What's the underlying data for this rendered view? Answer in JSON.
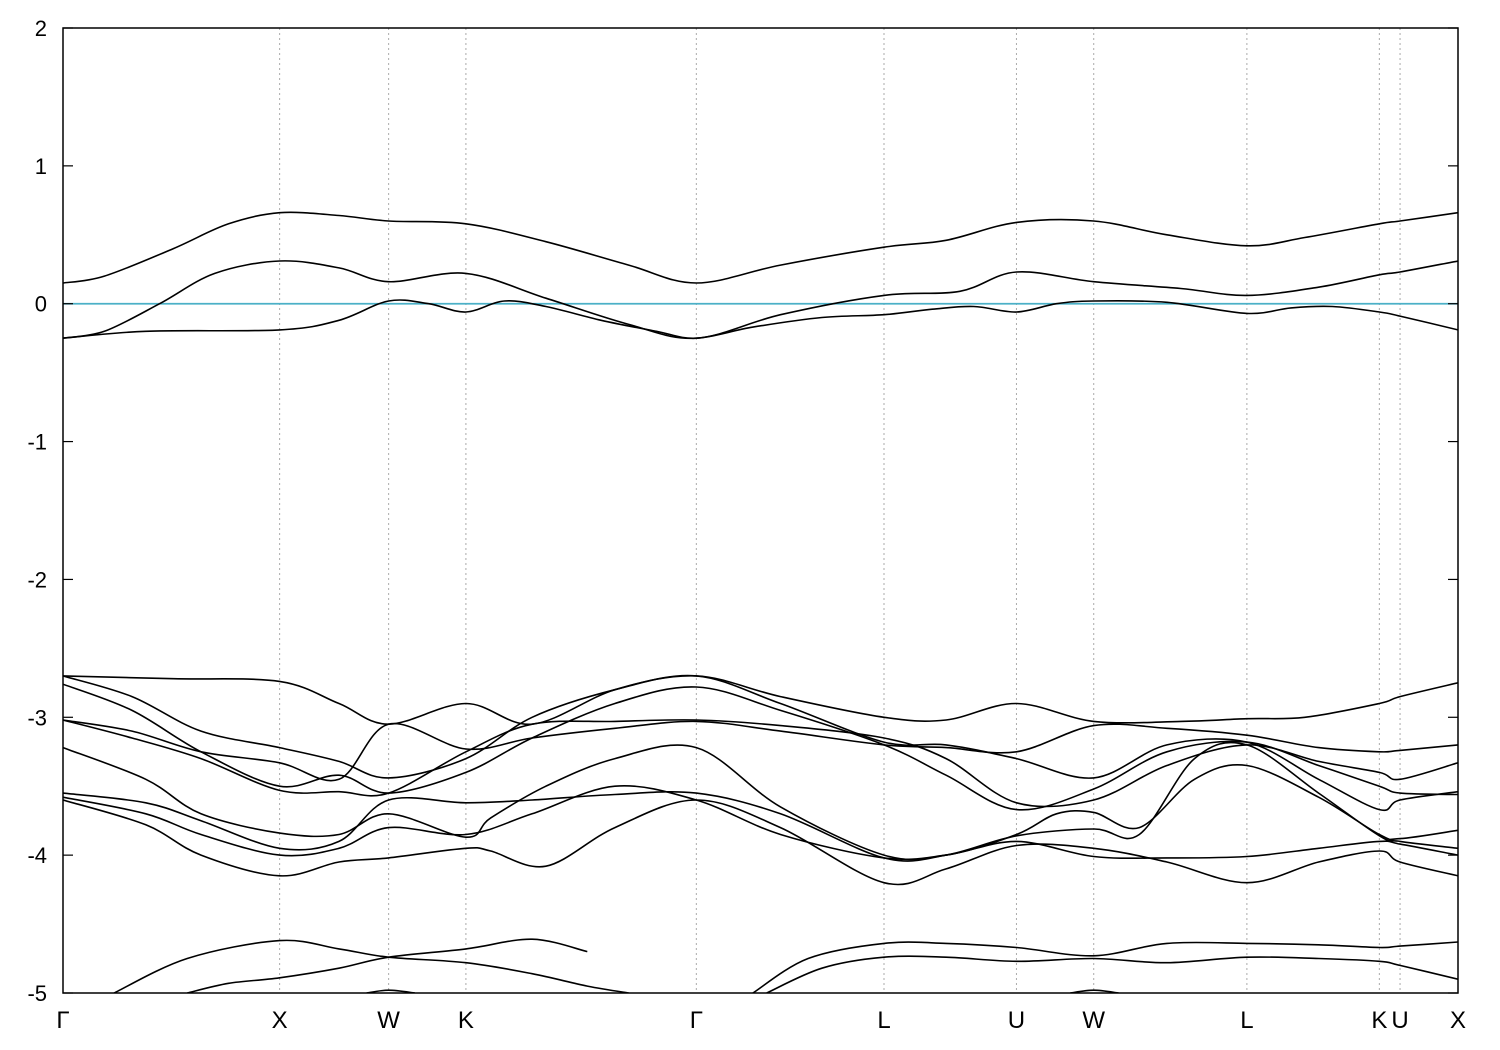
{
  "chart_data": {
    "type": "line",
    "title": "",
    "xlabel": "",
    "ylabel": "",
    "ylim": [
      -5,
      2
    ],
    "yticks": [
      -5,
      -4,
      -3,
      -2,
      -1,
      0,
      1,
      2
    ],
    "xlim": [
      0,
      10.11
    ],
    "grid": false,
    "fermi_level": {
      "value": 0,
      "color": "#4bb0c7"
    },
    "high_symmetry_points": [
      {
        "label": "Γ",
        "x": 0.0
      },
      {
        "label": "X",
        "x": 1.57
      },
      {
        "label": "W",
        "x": 2.36
      },
      {
        "label": "K",
        "x": 2.92
      },
      {
        "label": "Γ",
        "x": 4.59
      },
      {
        "label": "L",
        "x": 5.95
      },
      {
        "label": "U",
        "x": 6.91
      },
      {
        "label": "W",
        "x": 7.47
      },
      {
        "label": "L",
        "x": 8.58
      },
      {
        "label": "K",
        "x": 9.54
      },
      {
        "label": "U",
        "x": 9.69
      },
      {
        "label": "X",
        "x": 10.11
      }
    ],
    "series": [
      {
        "x": [
          0,
          0.3,
          0.8,
          1.2,
          1.57,
          2.0,
          2.36,
          2.92,
          3.5,
          4.1,
          4.59,
          5.2,
          5.95,
          6.4,
          6.91,
          7.47,
          8.0,
          8.58,
          9.0,
          9.54,
          9.69,
          10.11
        ],
        "values": [
          0.15,
          0.2,
          0.4,
          0.58,
          0.66,
          0.64,
          0.6,
          0.58,
          0.45,
          0.28,
          0.15,
          0.28,
          0.41,
          0.46,
          0.59,
          0.6,
          0.5,
          0.42,
          0.48,
          0.58,
          0.6,
          0.66
        ]
      },
      {
        "x": [
          0,
          0.3,
          0.7,
          1.1,
          1.57,
          2.0,
          2.36,
          2.92,
          3.5,
          4.1,
          4.59,
          5.2,
          5.95,
          6.5,
          6.91,
          7.47,
          8.1,
          8.58,
          9.1,
          9.54,
          9.69,
          10.11
        ],
        "values": [
          -0.25,
          -0.2,
          0.0,
          0.22,
          0.31,
          0.26,
          0.16,
          0.22,
          0.04,
          -0.15,
          -0.25,
          -0.08,
          0.06,
          0.09,
          0.23,
          0.16,
          0.11,
          0.06,
          0.12,
          0.21,
          0.23,
          0.31
        ]
      },
      {
        "x": [
          0,
          0.6,
          1.57,
          2.0,
          2.36,
          2.65,
          2.92,
          3.2,
          3.5,
          3.9,
          4.3,
          4.59,
          5.0,
          5.5,
          5.95,
          6.3,
          6.6,
          6.91,
          7.2,
          7.47,
          8.0,
          8.58,
          8.9,
          9.2,
          9.54,
          9.69,
          10.11
        ],
        "values": [
          -0.25,
          -0.2,
          -0.19,
          -0.12,
          0.02,
          0.0,
          -0.06,
          0.02,
          -0.02,
          -0.12,
          -0.2,
          -0.25,
          -0.17,
          -0.1,
          -0.08,
          -0.04,
          -0.02,
          -0.06,
          0.0,
          0.02,
          0.01,
          -0.07,
          -0.03,
          -0.02,
          -0.06,
          -0.09,
          -0.19
        ]
      },
      {
        "x": [
          0,
          0.8,
          1.57,
          2.0,
          2.36,
          2.92,
          3.4,
          4.0,
          4.59,
          5.2,
          5.95,
          6.4,
          6.91,
          7.47,
          8.1,
          8.58,
          9.0,
          9.54,
          9.69,
          10.11
        ],
        "values": [
          -2.7,
          -2.72,
          -2.74,
          -2.9,
          -3.05,
          -2.9,
          -3.05,
          -2.8,
          -2.7,
          -2.85,
          -3.0,
          -3.02,
          -2.9,
          -3.03,
          -3.03,
          -3.01,
          -3.0,
          -2.9,
          -2.85,
          -2.75
        ]
      },
      {
        "x": [
          0,
          0.5,
          1.0,
          1.57,
          2.0,
          2.36,
          2.92,
          3.4,
          4.0,
          4.59,
          5.2,
          5.95,
          6.4,
          6.91,
          7.47,
          8.0,
          8.58,
          9.1,
          9.54,
          9.69,
          10.11
        ],
        "values": [
          -2.7,
          -2.85,
          -3.1,
          -3.22,
          -3.32,
          -3.44,
          -3.3,
          -3.0,
          -2.8,
          -2.7,
          -2.9,
          -3.18,
          -3.2,
          -3.3,
          -3.44,
          -3.2,
          -3.18,
          -3.45,
          -3.67,
          -3.6,
          -3.54
        ]
      },
      {
        "x": [
          0,
          0.5,
          1.0,
          1.57,
          2.0,
          2.36,
          2.92,
          3.4,
          4.0,
          4.59,
          5.2,
          5.95,
          6.4,
          6.91,
          7.47,
          8.0,
          8.58,
          9.1,
          9.54,
          9.69,
          10.11
        ],
        "values": [
          -2.76,
          -2.95,
          -3.25,
          -3.5,
          -3.42,
          -3.55,
          -3.4,
          -3.15,
          -2.9,
          -2.78,
          -2.95,
          -3.2,
          -3.42,
          -3.67,
          -3.52,
          -3.25,
          -3.18,
          -3.35,
          -3.5,
          -3.55,
          -3.56
        ]
      },
      {
        "x": [
          0,
          0.5,
          1.0,
          1.57,
          2.0,
          2.36,
          2.92,
          3.4,
          4.0,
          4.59,
          5.2,
          5.95,
          6.4,
          6.91,
          7.47,
          8.0,
          8.58,
          9.1,
          9.54,
          9.69,
          10.11
        ],
        "values": [
          -3.02,
          -3.1,
          -3.25,
          -3.33,
          -3.45,
          -3.05,
          -3.23,
          -3.15,
          -3.08,
          -3.03,
          -3.1,
          -3.2,
          -3.22,
          -3.25,
          -3.06,
          -3.08,
          -3.13,
          -3.22,
          -3.25,
          -3.24,
          -3.2
        ]
      },
      {
        "x": [
          0,
          0.5,
          1.0,
          1.57,
          2.0,
          2.36,
          2.92,
          3.4,
          4.0,
          4.59,
          5.2,
          5.95,
          6.4,
          6.91,
          7.47,
          8.0,
          8.58,
          9.1,
          9.54,
          9.69,
          10.11
        ],
        "values": [
          -3.02,
          -3.15,
          -3.3,
          -3.53,
          -3.54,
          -3.55,
          -3.25,
          -3.05,
          -3.03,
          -3.02,
          -3.06,
          -3.15,
          -3.3,
          -3.62,
          -3.6,
          -3.35,
          -3.2,
          -3.32,
          -3.4,
          -3.45,
          -3.33
        ]
      },
      {
        "x": [
          0,
          0.6,
          1.0,
          1.57,
          2.0,
          2.36,
          2.92,
          3.1,
          3.5,
          4.0,
          4.59,
          5.2,
          5.95,
          6.4,
          6.91,
          7.2,
          7.47,
          7.8,
          8.2,
          8.58,
          9.1,
          9.54,
          9.69,
          10.11
        ],
        "values": [
          -3.22,
          -3.45,
          -3.7,
          -3.84,
          -3.85,
          -3.7,
          -3.87,
          -3.73,
          -3.5,
          -3.3,
          -3.22,
          -3.65,
          -4.0,
          -4.0,
          -3.85,
          -3.7,
          -3.69,
          -3.8,
          -3.45,
          -3.35,
          -3.58,
          -3.85,
          -3.88,
          -3.82
        ]
      },
      {
        "x": [
          0,
          0.6,
          1.0,
          1.57,
          2.0,
          2.36,
          2.92,
          3.4,
          4.0,
          4.59,
          5.2,
          5.95,
          6.4,
          6.91,
          7.47,
          7.8,
          8.2,
          8.58,
          9.1,
          9.54,
          9.69,
          10.11
        ],
        "values": [
          -3.55,
          -3.62,
          -3.75,
          -3.95,
          -3.9,
          -3.6,
          -3.62,
          -3.6,
          -3.56,
          -3.55,
          -3.7,
          -4.02,
          -4.0,
          -3.86,
          -3.81,
          -3.85,
          -3.3,
          -3.2,
          -3.55,
          -3.86,
          -3.9,
          -3.95
        ]
      },
      {
        "x": [
          0,
          0.6,
          1.0,
          1.57,
          2.0,
          2.36,
          2.92,
          3.4,
          4.0,
          4.59,
          5.2,
          5.95,
          6.4,
          6.91,
          7.47,
          8.0,
          8.58,
          9.1,
          9.54,
          9.69,
          10.11
        ],
        "values": [
          -3.58,
          -3.7,
          -3.85,
          -4.0,
          -3.95,
          -3.8,
          -3.85,
          -3.7,
          -3.5,
          -3.6,
          -3.85,
          -4.02,
          -4.0,
          -3.9,
          -4.01,
          -4.02,
          -4.01,
          -3.95,
          -3.9,
          -3.92,
          -4.0
        ]
      },
      {
        "x": [
          0,
          0.6,
          1.0,
          1.57,
          2.0,
          2.36,
          2.92,
          3.1,
          3.5,
          4.0,
          4.59,
          5.2,
          5.95,
          6.4,
          6.91,
          7.47,
          8.0,
          8.58,
          9.1,
          9.54,
          9.69,
          10.11
        ],
        "values": [
          -3.6,
          -3.78,
          -4.0,
          -4.15,
          -4.05,
          -4.02,
          -3.95,
          -3.97,
          -4.08,
          -3.8,
          -3.6,
          -3.8,
          -4.2,
          -4.1,
          -3.93,
          -3.95,
          -4.05,
          -4.2,
          -4.05,
          -3.97,
          -4.05,
          -4.15
        ]
      },
      {
        "x": [
          0.37,
          0.9,
          1.57,
          2.0,
          2.36,
          2.92,
          3.4,
          3.8,
          4.1
        ],
        "values": [
          -5.0,
          -4.75,
          -4.62,
          -4.68,
          -4.74,
          -4.78,
          -4.86,
          -4.95,
          -5.0
        ]
      },
      {
        "x": [
          0.9,
          1.2,
          1.57,
          2.0,
          2.36,
          2.92,
          3.4,
          3.8
        ],
        "values": [
          -5.0,
          -4.93,
          -4.89,
          -4.82,
          -4.74,
          -4.68,
          -4.61,
          -4.7
        ]
      },
      {
        "x": [
          5.0,
          5.4,
          5.95,
          6.4,
          6.91,
          7.47,
          8.0,
          8.58,
          9.1,
          9.54,
          9.69,
          10.11
        ],
        "values": [
          -5.0,
          -4.75,
          -4.64,
          -4.64,
          -4.67,
          -4.73,
          -4.64,
          -4.64,
          -4.65,
          -4.67,
          -4.66,
          -4.63
        ]
      },
      {
        "x": [
          5.1,
          5.5,
          5.95,
          6.4,
          6.91,
          7.47,
          8.0,
          8.58,
          9.1,
          9.54,
          9.69,
          10.11
        ],
        "values": [
          -5.0,
          -4.82,
          -4.74,
          -4.74,
          -4.77,
          -4.75,
          -4.78,
          -4.74,
          -4.75,
          -4.77,
          -4.8,
          -4.9
        ]
      },
      {
        "x": [
          2.2,
          2.36,
          2.55
        ],
        "values": [
          -5.0,
          -4.98,
          -5.0
        ]
      },
      {
        "x": [
          7.3,
          7.47,
          7.65
        ],
        "values": [
          -5.0,
          -4.98,
          -5.0
        ]
      }
    ]
  }
}
